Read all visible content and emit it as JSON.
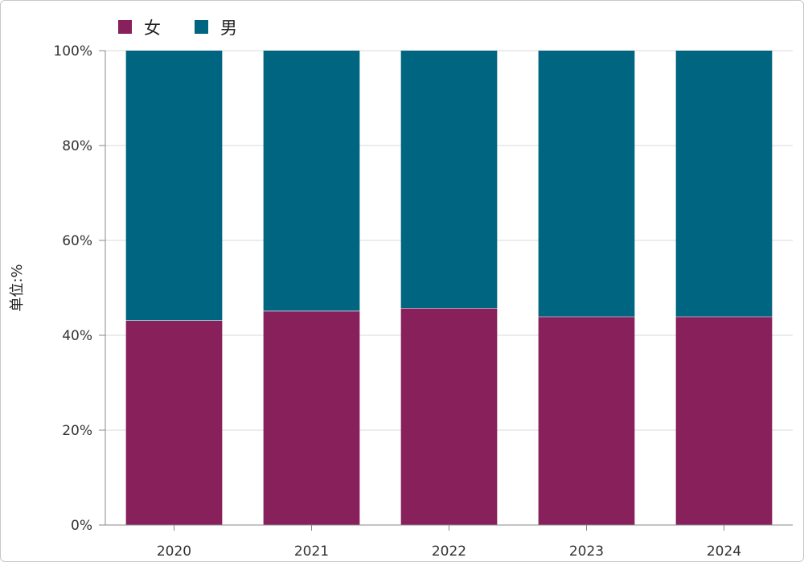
{
  "chart_data": {
    "type": "bar",
    "stacked": true,
    "categories": [
      "2020",
      "2021",
      "2022",
      "2023",
      "2024"
    ],
    "series": [
      {
        "name": "女",
        "color": "#88205c",
        "values": [
          43.1,
          45.1,
          45.7,
          43.9,
          43.9
        ]
      },
      {
        "name": "男",
        "color": "#006580",
        "values": [
          56.9,
          54.9,
          54.3,
          56.1,
          56.1
        ]
      }
    ],
    "ylabel": "单位:%",
    "xlabel": "",
    "ylim": [
      0,
      100
    ],
    "yticks": [
      "0%",
      "20%",
      "40%",
      "60%",
      "80%",
      "100%"
    ],
    "grid": true,
    "legend_position": "top-left"
  }
}
